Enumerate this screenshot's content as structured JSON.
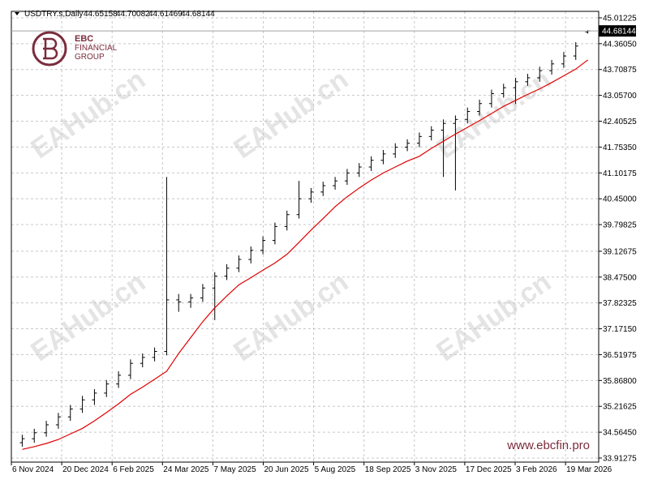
{
  "chart_data": {
    "type": "ohlc",
    "symbol": "USDTRY.s,Daily",
    "logo": {
      "line1": "EBC",
      "line2": "FINANCIAL",
      "line3": "GROUP"
    },
    "watermark": "EAHub.cn",
    "website": "www.ebcfin.pro",
    "x_labels": [
      "6 Nov 2024",
      "20 Dec 2024",
      "6 Feb 2025",
      "24 Mar 2025",
      "7 May 2025",
      "20 Jun 2025",
      "5 Aug 2025",
      "18 Sep 2025",
      "3 Nov 2025",
      "17 Dec 2025",
      "3 Feb 2026",
      "19 Mar 2026"
    ],
    "ylim": [
      33.81,
      45.175
    ],
    "yticks": [
      45.01225,
      {
        "value": 44.3605,
        "label": "44.36050"
      },
      43.70875,
      {
        "value": 43.057,
        "label": "43.05700"
      },
      42.40525,
      {
        "value": 41.7535,
        "label": "41.75350"
      },
      41.10175,
      {
        "value": 40.45,
        "label": "40.45000"
      },
      39.79825,
      39.12675,
      {
        "value": 38.475,
        "label": "38.47500"
      },
      37.82325,
      {
        "value": 37.1715,
        "label": "37.17150"
      },
      36.51975,
      {
        "value": 35.868,
        "label": "35.86800"
      },
      35.21625,
      {
        "value": 34.5645,
        "label": "34.56450"
      },
      33.91275
    ],
    "grid": true,
    "series": [
      {
        "name": "USDTRY.s",
        "color": "#000000",
        "values": [
          [
            34.3,
            34.5,
            34.2,
            34.4
          ],
          [
            34.4,
            34.65,
            34.3,
            34.55
          ],
          [
            34.55,
            34.85,
            34.45,
            34.75
          ],
          [
            34.75,
            35.05,
            34.65,
            34.95
          ],
          [
            34.95,
            35.25,
            34.85,
            35.15
          ],
          [
            35.15,
            35.48,
            35.05,
            35.38
          ],
          [
            35.38,
            35.65,
            35.25,
            35.55
          ],
          [
            35.55,
            35.88,
            35.45,
            35.78
          ],
          [
            35.78,
            36.1,
            35.68,
            36.0
          ],
          [
            36.0,
            36.4,
            35.9,
            36.3
          ],
          [
            36.3,
            36.55,
            36.2,
            36.45
          ],
          [
            36.45,
            36.7,
            36.35,
            36.6
          ],
          [
            36.6,
            41.0,
            36.5,
            37.9
          ],
          [
            37.9,
            38.05,
            37.6,
            37.85
          ],
          [
            37.85,
            38.05,
            37.7,
            37.95
          ],
          [
            37.95,
            38.3,
            37.85,
            38.2
          ],
          [
            38.2,
            38.6,
            37.39,
            38.5
          ],
          [
            38.5,
            38.8,
            38.4,
            38.7
          ],
          [
            38.7,
            39.02,
            38.6,
            38.92
          ],
          [
            38.92,
            39.25,
            38.82,
            39.15
          ],
          [
            39.15,
            39.5,
            39.05,
            39.4
          ],
          [
            39.4,
            39.85,
            39.3,
            39.75
          ],
          [
            39.75,
            40.15,
            39.65,
            40.05
          ],
          [
            40.05,
            40.9,
            39.95,
            40.45
          ],
          [
            40.45,
            40.72,
            40.35,
            40.62
          ],
          [
            40.62,
            40.88,
            40.52,
            40.78
          ],
          [
            40.78,
            41.0,
            40.68,
            40.9
          ],
          [
            40.9,
            41.2,
            40.8,
            41.1
          ],
          [
            41.1,
            41.35,
            41.0,
            41.25
          ],
          [
            41.25,
            41.52,
            41.15,
            41.42
          ],
          [
            41.42,
            41.68,
            41.32,
            41.58
          ],
          [
            41.58,
            41.85,
            41.48,
            41.75
          ],
          [
            41.75,
            41.95,
            41.65,
            41.85
          ],
          [
            41.85,
            42.12,
            41.75,
            42.02
          ],
          [
            42.02,
            42.28,
            41.92,
            42.18
          ],
          [
            42.18,
            42.45,
            41.0,
            42.35
          ],
          [
            42.35,
            42.55,
            40.66,
            42.45
          ],
          [
            42.45,
            42.75,
            42.35,
            42.65
          ],
          [
            42.65,
            42.95,
            42.55,
            42.85
          ],
          [
            42.85,
            43.2,
            42.75,
            43.1
          ],
          [
            43.1,
            43.35,
            43.0,
            43.25
          ],
          [
            43.25,
            43.5,
            42.84,
            43.4
          ],
          [
            43.4,
            43.6,
            43.3,
            43.5
          ],
          [
            43.5,
            43.78,
            43.4,
            43.68
          ],
          [
            43.68,
            43.95,
            43.58,
            43.85
          ],
          [
            43.85,
            44.15,
            43.75,
            44.05
          ],
          [
            44.05,
            44.4,
            43.95,
            44.3
          ],
          [
            44.65158,
            44.70082,
            44.61469,
            44.68144
          ]
        ]
      },
      {
        "name": "MA",
        "color": "#e00000",
        "values": [
          34.13,
          34.2,
          34.28,
          34.38,
          34.52,
          34.66,
          34.85,
          35.06,
          35.28,
          35.52,
          35.7,
          35.9,
          36.1,
          36.55,
          36.95,
          37.35,
          37.7,
          38.0,
          38.28,
          38.46,
          38.65,
          38.83,
          39.05,
          39.35,
          39.66,
          39.95,
          40.25,
          40.5,
          40.72,
          40.92,
          41.1,
          41.25,
          41.4,
          41.52,
          41.72,
          41.9,
          42.08,
          42.25,
          42.42,
          42.6,
          42.78,
          42.93,
          43.08,
          43.22,
          43.38,
          43.55,
          43.72,
          43.95
        ]
      }
    ]
  }
}
